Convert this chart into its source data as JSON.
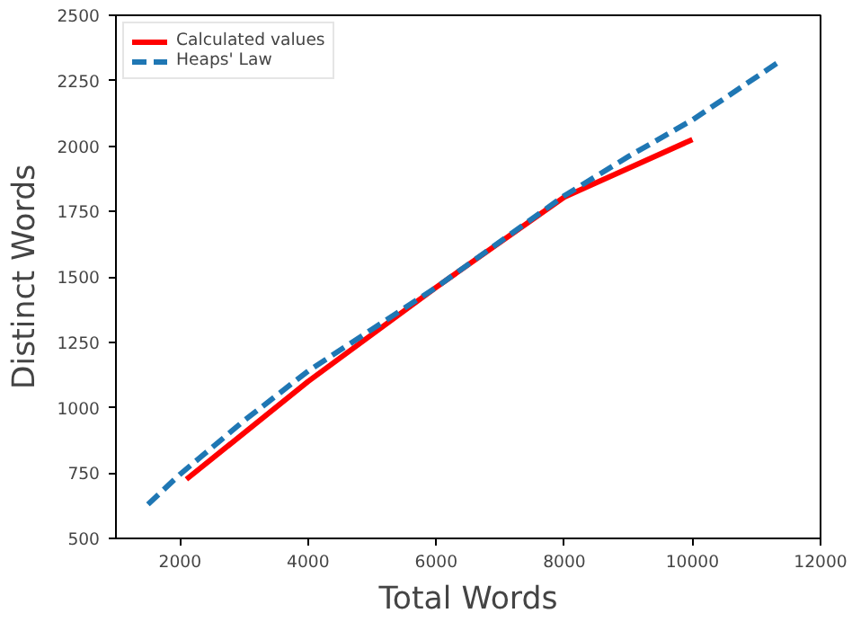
{
  "chart_data": {
    "type": "line",
    "xlabel": "Total Words",
    "ylabel": "Distinct Words",
    "xlim": [
      1000,
      12000
    ],
    "xticks": [
      2000,
      4000,
      6000,
      8000,
      10000,
      12000
    ],
    "ylim": [
      500,
      2500
    ],
    "yticks": [
      500,
      750,
      1000,
      1250,
      1500,
      1750,
      2000,
      2250,
      2500
    ],
    "grid": false,
    "legend": "top left",
    "series": [
      {
        "name": "Calculated values",
        "color": "#ff0000",
        "line_style": "solid",
        "x": [
          2100,
          4000,
          6000,
          8000,
          10000
        ],
        "values": [
          726,
          1100,
          1460,
          1805,
          2025
        ]
      },
      {
        "name": "Heaps' Law",
        "color": "#1f77b4",
        "line_style": "dashed",
        "x": [
          1500,
          2000,
          3000,
          4000,
          5000,
          6000,
          7000,
          8000,
          9000,
          10000,
          11400
        ],
        "values": [
          630,
          745,
          950,
          1140,
          1300,
          1460,
          1635,
          1810,
          1960,
          2100,
          2330
        ]
      }
    ]
  }
}
